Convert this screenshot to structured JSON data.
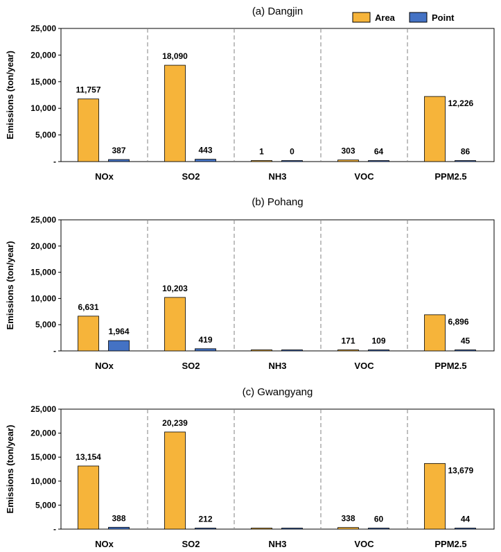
{
  "legend": {
    "area_label": "Area",
    "point_label": "Point",
    "colors": {
      "area": "#F6B43A",
      "point": "#4472C4"
    }
  },
  "chart_data": [
    {
      "type": "bar",
      "title": "(a) Dangjin",
      "ylabel": "Emissions (ton/year)",
      "xlabel": "",
      "categories": [
        "NOx",
        "SO2",
        "NH3",
        "VOC",
        "PPM2.5"
      ],
      "ylim": [
        0,
        25000
      ],
      "yticks": [
        0,
        5000,
        10000,
        15000,
        20000,
        25000
      ],
      "ytick_labels": [
        "-",
        "5,000",
        "10,000",
        "15,000",
        "20,000",
        "25,000"
      ],
      "series": [
        {
          "name": "Area",
          "values": [
            11757,
            18090,
            1,
            303,
            12226
          ],
          "labels": [
            "11,757",
            "18,090",
            "1",
            "303",
            "12,226"
          ]
        },
        {
          "name": "Point",
          "values": [
            387,
            443,
            0,
            64,
            86
          ],
          "labels": [
            "387",
            "443",
            "0",
            "64",
            "86"
          ]
        }
      ],
      "legend_position": "top-right"
    },
    {
      "type": "bar",
      "title": "(b) Pohang",
      "ylabel": "Emissions (ton/year)",
      "xlabel": "",
      "categories": [
        "NOx",
        "SO2",
        "NH3",
        "VOC",
        "PPM2.5"
      ],
      "ylim": [
        0,
        25000
      ],
      "yticks": [
        0,
        5000,
        10000,
        15000,
        20000,
        25000
      ],
      "ytick_labels": [
        "-",
        "5,000",
        "10,000",
        "15,000",
        "20,000",
        "25,000"
      ],
      "series": [
        {
          "name": "Area",
          "values": [
            6631,
            10203,
            0,
            171,
            6896
          ],
          "labels": [
            "6,631",
            "10,203",
            "",
            "171",
            "6,896"
          ]
        },
        {
          "name": "Point",
          "values": [
            1964,
            419,
            0,
            109,
            45
          ],
          "labels": [
            "1,964",
            "419",
            "",
            "109",
            "45"
          ]
        }
      ]
    },
    {
      "type": "bar",
      "title": "(c) Gwangyang",
      "ylabel": "Emissions (ton/year)",
      "xlabel": "",
      "categories": [
        "NOx",
        "SO2",
        "NH3",
        "VOC",
        "PPM2.5"
      ],
      "ylim": [
        0,
        25000
      ],
      "yticks": [
        0,
        5000,
        10000,
        15000,
        20000,
        25000
      ],
      "ytick_labels": [
        "-",
        "5,000",
        "10,000",
        "15,000",
        "20,000",
        "25,000"
      ],
      "series": [
        {
          "name": "Area",
          "values": [
            13154,
            20239,
            0,
            338,
            13679
          ],
          "labels": [
            "13,154",
            "20,239",
            "",
            "338",
            "13,679"
          ]
        },
        {
          "name": "Point",
          "values": [
            388,
            212,
            0,
            60,
            44
          ],
          "labels": [
            "388",
            "212",
            "",
            "60",
            "44"
          ]
        }
      ]
    }
  ]
}
